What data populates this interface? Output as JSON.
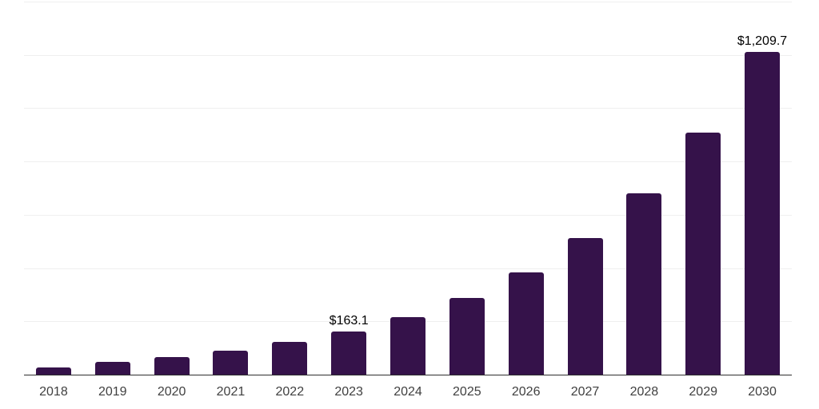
{
  "chart": {
    "background_color": "#ffffff",
    "bar_color": "#35124a",
    "axis_line_color": "#2e2e2e",
    "gridline_color": "#efefef",
    "tick_label_color": "#404040",
    "data_label_color": "#000000"
  },
  "chart_data": {
    "type": "bar",
    "title": "",
    "xlabel": "",
    "ylabel": "",
    "categories": [
      "2018",
      "2019",
      "2020",
      "2021",
      "2022",
      "2023",
      "2024",
      "2025",
      "2026",
      "2027",
      "2028",
      "2029",
      "2030"
    ],
    "values": [
      26.8,
      48.2,
      65.9,
      90.1,
      121.9,
      163.1,
      217.1,
      289.1,
      384.8,
      512.2,
      681.9,
      907.7,
      1209.7
    ],
    "data_labels": {
      "2023": "$163.1",
      "2030": "$1,209.7"
    },
    "ylim": [
      0,
      1400
    ],
    "gridline_interval": 200,
    "grid": "horizontal-only",
    "y_axis_labels": "none",
    "legend": "none"
  }
}
